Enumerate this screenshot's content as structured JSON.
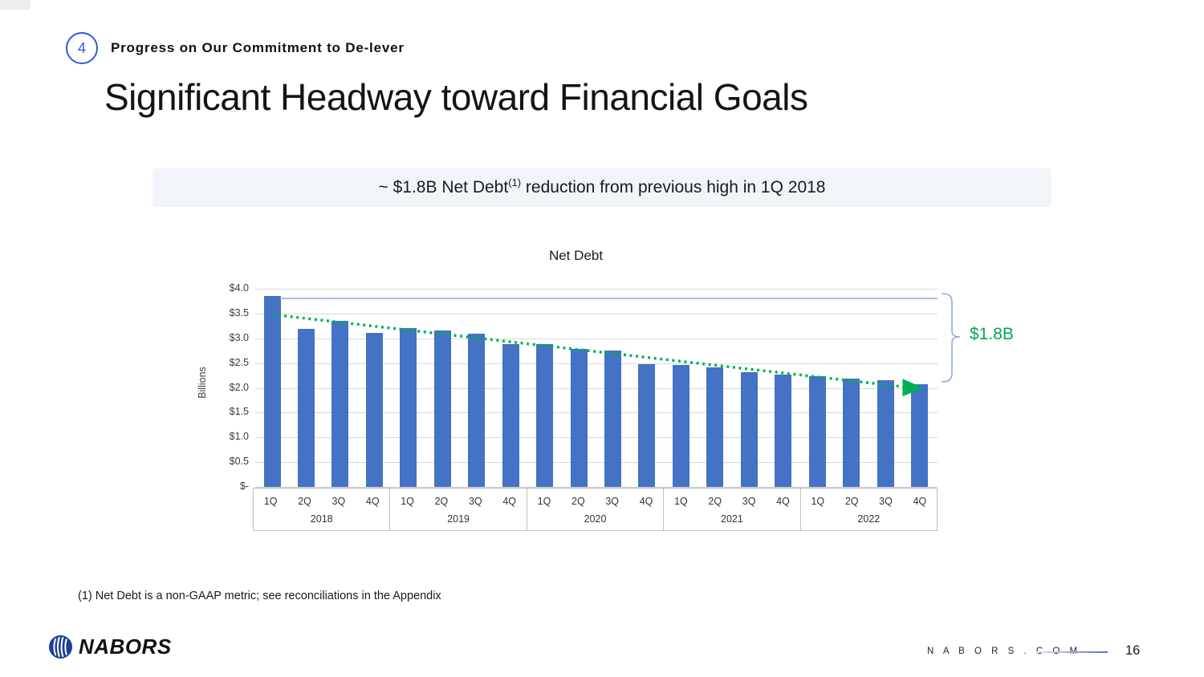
{
  "slide": {
    "kicker_number": "4",
    "kicker_text": "Progress on Our Commitment to De-lever",
    "title": "Significant Headway toward Financial Goals",
    "banner": {
      "prefix": "~ $1.8B Net Debt",
      "sup": "(1)",
      "suffix": " reduction from previous high in 1Q 2018"
    },
    "footnote": "(1) Net Debt is a non-GAAP metric; see reconciliations in the Appendix",
    "footer": {
      "brand": "NABORS",
      "website": "N A B O R S . C O M",
      "page_number": "16"
    }
  },
  "chart_data": {
    "type": "bar",
    "title": "Net Debt",
    "xlabel": "",
    "ylabel": "Billions",
    "ylim": [
      0,
      4.0
    ],
    "ytick_labels": [
      "$4.0",
      "$3.5",
      "$3.0",
      "$2.5",
      "$2.0",
      "$1.5",
      "$1.0",
      "$0.5",
      "$-"
    ],
    "grid": true,
    "bar_color": "#4472C4",
    "years": [
      {
        "label": "2018",
        "quarters": [
          "1Q",
          "2Q",
          "3Q",
          "4Q"
        ]
      },
      {
        "label": "2019",
        "quarters": [
          "1Q",
          "2Q",
          "3Q",
          "4Q"
        ]
      },
      {
        "label": "2020",
        "quarters": [
          "1Q",
          "2Q",
          "3Q",
          "4Q"
        ]
      },
      {
        "label": "2021",
        "quarters": [
          "1Q",
          "2Q",
          "3Q",
          "4Q"
        ]
      },
      {
        "label": "2022",
        "quarters": [
          "1Q",
          "2Q",
          "3Q",
          "4Q"
        ]
      }
    ],
    "values": [
      3.85,
      3.19,
      3.36,
      3.11,
      3.21,
      3.16,
      3.09,
      2.88,
      2.89,
      2.78,
      2.76,
      2.47,
      2.46,
      2.41,
      2.31,
      2.27,
      2.23,
      2.19,
      2.15,
      2.08
    ],
    "annotations": {
      "reduction_label": "$1.8B",
      "reduction_color": "#00a650",
      "reference_line_value": 3.82,
      "reference_line_color": "#a9bce6",
      "trend_start_value": 3.48,
      "trend_end_value": 2.02,
      "trend_color": "#00B050",
      "bracket_color": "#8faadc"
    }
  }
}
